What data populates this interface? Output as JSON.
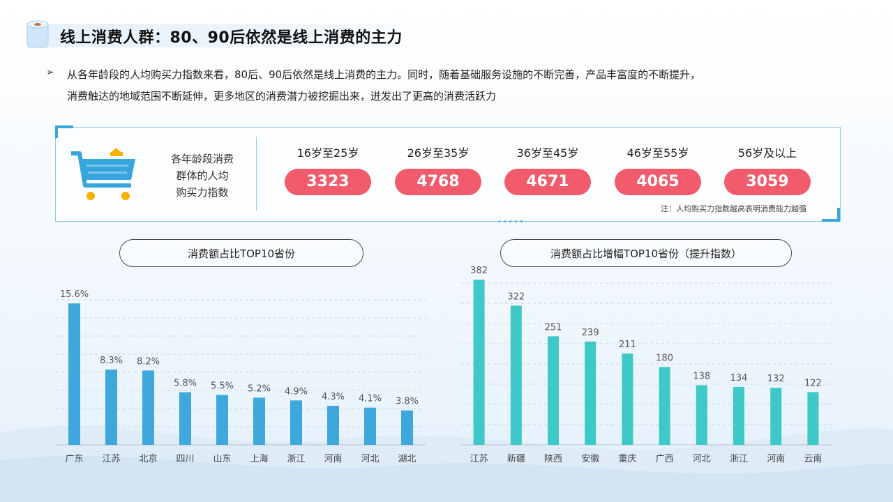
{
  "title": "线上消费人群：80、90后依然是线上消费的主力",
  "intro": {
    "line1": "从各年龄段的人均购买力指数来看，80后、90后依然是线上消费的主力。同时，随着基础服务设施的不断完善，产品丰富度的不断提升，",
    "line2": "消费触达的地域范围不断延伸，更多地区的消费潜力被挖掘出来，迸发出了更高的消费活跃力"
  },
  "panel": {
    "label_lines": [
      "各年龄段消费",
      "群体的人均",
      "购买力指数"
    ],
    "groups": [
      {
        "label": "16岁至25岁",
        "value": "3323"
      },
      {
        "label": "26岁至35岁",
        "value": "4768"
      },
      {
        "label": "36岁至45岁",
        "value": "4671"
      },
      {
        "label": "46岁至55岁",
        "value": "4065"
      },
      {
        "label": "56岁及以上",
        "value": "3059"
      }
    ],
    "note": "注：人均购买力指数越高表明消费能力越强"
  },
  "colors": {
    "accent": "#36a6dd",
    "pill": "#f15b6c",
    "bar_blue": "#3ea7dc",
    "bar_teal": "#3ec8c8"
  },
  "chart_data": [
    {
      "type": "bar",
      "title": "消费额占比TOP10省份",
      "categories": [
        "广东",
        "江苏",
        "北京",
        "四川",
        "山东",
        "上海",
        "浙江",
        "河南",
        "河北",
        "湖北"
      ],
      "values": [
        15.6,
        8.3,
        8.2,
        5.8,
        5.5,
        5.2,
        4.9,
        4.3,
        4.1,
        3.8
      ],
      "value_labels": [
        "15.6%",
        "8.3%",
        "8.2%",
        "5.8%",
        "5.5%",
        "5.2%",
        "4.9%",
        "4.3%",
        "4.1%",
        "3.8%"
      ],
      "unit": "%",
      "ylim": [
        0,
        17
      ],
      "grid": true,
      "xlabel": "",
      "ylabel": ""
    },
    {
      "type": "bar",
      "title": "消费额占比增幅TOP10省份（提升指数）",
      "categories": [
        "江苏",
        "新疆",
        "陕西",
        "安徽",
        "重庆",
        "广西",
        "河北",
        "浙江",
        "河南",
        "云南"
      ],
      "values": [
        382,
        322,
        251,
        239,
        211,
        180,
        138,
        134,
        132,
        122
      ],
      "value_labels": [
        "382",
        "322",
        "251",
        "239",
        "211",
        "180",
        "138",
        "134",
        "132",
        "122"
      ],
      "unit": "",
      "ylim": [
        0,
        400
      ],
      "grid": true,
      "xlabel": "",
      "ylabel": ""
    }
  ]
}
